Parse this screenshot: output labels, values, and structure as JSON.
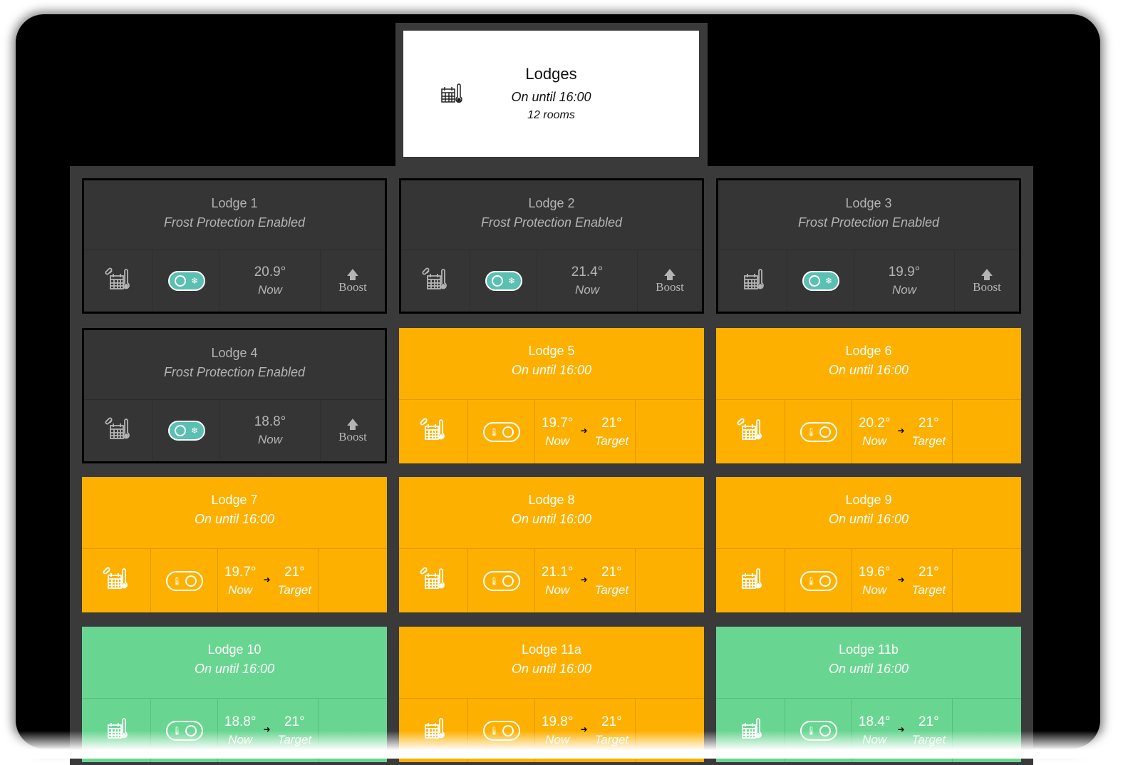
{
  "header": {
    "title": "Lodges",
    "status": "On until 16:00",
    "rooms": "12 rooms"
  },
  "colors": {
    "dark": "#353535",
    "orange": "#fdb000",
    "green": "#68d691",
    "toggle": "#5bbfb2"
  },
  "labels": {
    "now": "Now",
    "target": "Target",
    "boost": "Boost"
  },
  "lodges": [
    {
      "name": "Lodge 1",
      "status": "Frost Protection Enabled",
      "state": "dark",
      "linked": true,
      "now": "20.9°"
    },
    {
      "name": "Lodge 2",
      "status": "Frost Protection Enabled",
      "state": "dark",
      "linked": true,
      "now": "21.4°"
    },
    {
      "name": "Lodge 3",
      "status": "Frost Protection Enabled",
      "state": "dark",
      "linked": false,
      "now": "19.9°"
    },
    {
      "name": "Lodge 4",
      "status": "Frost Protection Enabled",
      "state": "dark",
      "linked": true,
      "now": "18.8°"
    },
    {
      "name": "Lodge 5",
      "status": "On until 16:00",
      "state": "orange",
      "linked": true,
      "now": "19.7°",
      "target": "21°"
    },
    {
      "name": "Lodge 6",
      "status": "On until 16:00",
      "state": "orange",
      "linked": true,
      "now": "20.2°",
      "target": "21°"
    },
    {
      "name": "Lodge 7",
      "status": "On until 16:00",
      "state": "orange",
      "linked": true,
      "now": "19.7°",
      "target": "21°"
    },
    {
      "name": "Lodge 8",
      "status": "On until 16:00",
      "state": "orange",
      "linked": true,
      "now": "21.1°",
      "target": "21°"
    },
    {
      "name": "Lodge 9",
      "status": "On until 16:00",
      "state": "orange",
      "linked": false,
      "now": "19.6°",
      "target": "21°"
    },
    {
      "name": "Lodge 10",
      "status": "On until 16:00",
      "state": "green",
      "linked": false,
      "now": "18.8°",
      "target": "21°"
    },
    {
      "name": "Lodge 11a",
      "status": "On until 16:00",
      "state": "orange",
      "linked": false,
      "now": "19.8°",
      "target": "21°"
    },
    {
      "name": "Lodge 11b",
      "status": "On until 16:00",
      "state": "green",
      "linked": false,
      "now": "18.4°",
      "target": "21°"
    }
  ]
}
